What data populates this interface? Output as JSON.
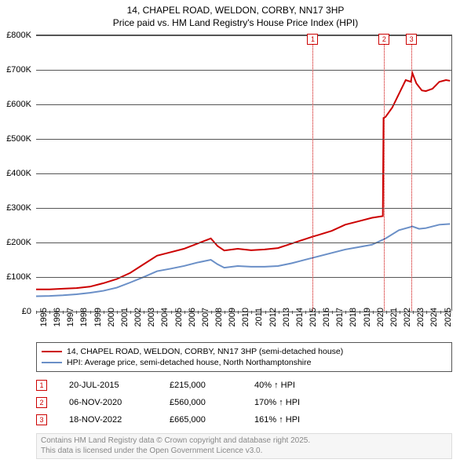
{
  "title": {
    "line1": "14, CHAPEL ROAD, WELDON, CORBY, NN17 3HP",
    "line2": "Price paid vs. HM Land Registry's House Price Index (HPI)",
    "fontsize": 12
  },
  "chart": {
    "type": "line",
    "background_color": "#ffffff",
    "grid_color": "#555555",
    "xlim": [
      1995,
      2025.9
    ],
    "ylim": [
      0,
      800000
    ],
    "y_ticks": [
      {
        "v": 0,
        "label": "£0"
      },
      {
        "v": 100000,
        "label": "£100K"
      },
      {
        "v": 200000,
        "label": "£200K"
      },
      {
        "v": 300000,
        "label": "£300K"
      },
      {
        "v": 400000,
        "label": "£400K"
      },
      {
        "v": 500000,
        "label": "£500K"
      },
      {
        "v": 600000,
        "label": "£600K"
      },
      {
        "v": 700000,
        "label": "£700K"
      },
      {
        "v": 800000,
        "label": "£800K"
      }
    ],
    "x_ticks": [
      1995,
      1996,
      1997,
      1998,
      1999,
      2000,
      2001,
      2002,
      2003,
      2004,
      2005,
      2006,
      2007,
      2008,
      2009,
      2010,
      2011,
      2012,
      2013,
      2014,
      2015,
      2016,
      2017,
      2018,
      2019,
      2020,
      2021,
      2022,
      2023,
      2024,
      2025
    ],
    "series_price": {
      "label": "14, CHAPEL ROAD, WELDON, CORBY, NN17 3HP (semi-detached house)",
      "color": "#cc0000",
      "line_width": 2,
      "points": [
        [
          1995,
          62000
        ],
        [
          1996,
          62000
        ],
        [
          1997,
          64000
        ],
        [
          1998,
          66000
        ],
        [
          1999,
          70000
        ],
        [
          2000,
          80000
        ],
        [
          2001,
          92000
        ],
        [
          2002,
          110000
        ],
        [
          2003,
          135000
        ],
        [
          2004,
          160000
        ],
        [
          2005,
          170000
        ],
        [
          2006,
          180000
        ],
        [
          2007,
          195000
        ],
        [
          2008,
          210000
        ],
        [
          2008.5,
          188000
        ],
        [
          2009,
          175000
        ],
        [
          2010,
          180000
        ],
        [
          2011,
          176000
        ],
        [
          2012,
          178000
        ],
        [
          2013,
          182000
        ],
        [
          2014,
          195000
        ],
        [
          2015,
          208000
        ],
        [
          2015.55,
          215000
        ],
        [
          2016,
          220000
        ],
        [
          2017,
          232000
        ],
        [
          2018,
          250000
        ],
        [
          2019,
          260000
        ],
        [
          2020,
          270000
        ],
        [
          2020.8,
          275000
        ],
        [
          2020.85,
          560000
        ],
        [
          2021,
          563000
        ],
        [
          2021.5,
          590000
        ],
        [
          2022,
          630000
        ],
        [
          2022.5,
          670000
        ],
        [
          2022.88,
          665000
        ],
        [
          2023,
          690000
        ],
        [
          2023.3,
          660000
        ],
        [
          2023.7,
          640000
        ],
        [
          2024,
          638000
        ],
        [
          2024.5,
          645000
        ],
        [
          2025,
          665000
        ],
        [
          2025.5,
          670000
        ],
        [
          2025.8,
          668000
        ]
      ]
    },
    "series_hpi": {
      "label": "HPI: Average price, semi-detached house, North Northamptonshire",
      "color": "#6a8fc7",
      "line_width": 2,
      "points": [
        [
          1995,
          42000
        ],
        [
          1996,
          43000
        ],
        [
          1997,
          45000
        ],
        [
          1998,
          48000
        ],
        [
          1999,
          52000
        ],
        [
          2000,
          58000
        ],
        [
          2001,
          67000
        ],
        [
          2002,
          82000
        ],
        [
          2003,
          98000
        ],
        [
          2004,
          115000
        ],
        [
          2005,
          122000
        ],
        [
          2006,
          130000
        ],
        [
          2007,
          140000
        ],
        [
          2008,
          148000
        ],
        [
          2008.5,
          135000
        ],
        [
          2009,
          125000
        ],
        [
          2010,
          130000
        ],
        [
          2011,
          128000
        ],
        [
          2012,
          128000
        ],
        [
          2013,
          130000
        ],
        [
          2014,
          138000
        ],
        [
          2015,
          148000
        ],
        [
          2016,
          158000
        ],
        [
          2017,
          168000
        ],
        [
          2018,
          178000
        ],
        [
          2019,
          185000
        ],
        [
          2020,
          192000
        ],
        [
          2021,
          210000
        ],
        [
          2022,
          234000
        ],
        [
          2023,
          245000
        ],
        [
          2023.5,
          238000
        ],
        [
          2024,
          240000
        ],
        [
          2025,
          250000
        ],
        [
          2025.8,
          252000
        ]
      ]
    },
    "sale_markers": [
      {
        "n": "1",
        "x": 2015.55,
        "color": "#cc0000"
      },
      {
        "n": "2",
        "x": 2020.85,
        "color": "#cc0000"
      },
      {
        "n": "3",
        "x": 2022.88,
        "color": "#cc0000"
      }
    ]
  },
  "legend": {
    "border_color": "#555555",
    "items": [
      {
        "color": "#cc0000",
        "label_key": "chart.series_price.label"
      },
      {
        "color": "#6a8fc7",
        "label_key": "chart.series_hpi.label"
      }
    ]
  },
  "sales": [
    {
      "n": "1",
      "date": "20-JUL-2015",
      "price": "£215,000",
      "pct": "40% ↑ HPI"
    },
    {
      "n": "2",
      "date": "06-NOV-2020",
      "price": "£560,000",
      "pct": "170% ↑ HPI"
    },
    {
      "n": "3",
      "date": "18-NOV-2022",
      "price": "£665,000",
      "pct": "161% ↑ HPI"
    }
  ],
  "footer": {
    "line1": "Contains HM Land Registry data © Crown copyright and database right 2025.",
    "line2": "This data is licensed under the Open Government Licence v3.0."
  }
}
